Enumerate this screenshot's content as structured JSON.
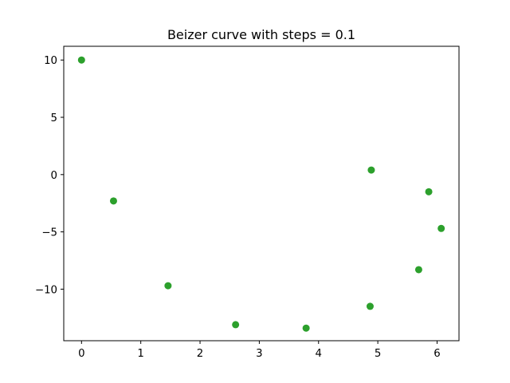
{
  "chart_data": {
    "type": "scatter",
    "title": "Beizer curve with steps = 0.1",
    "xlabel": "",
    "ylabel": "",
    "xlim": [
      -0.3,
      6.37
    ],
    "ylim": [
      -14.5,
      11.2
    ],
    "xticks": [
      0,
      1,
      2,
      3,
      4,
      5,
      6
    ],
    "yticks": [
      10,
      5,
      0,
      -5,
      -10
    ],
    "ytick_labels": [
      "10",
      "5",
      "0",
      "−5",
      "−10"
    ],
    "grid": false,
    "marker_color": "#2ca02c",
    "series": [
      {
        "x": [
          0.0,
          0.54,
          1.46,
          2.6,
          3.79,
          4.87,
          5.69,
          6.07,
          5.86,
          4.89
        ],
        "y": [
          10.0,
          -2.3,
          -9.7,
          -13.1,
          -13.4,
          -11.5,
          -8.3,
          -4.7,
          -1.5,
          0.4
        ]
      }
    ]
  }
}
